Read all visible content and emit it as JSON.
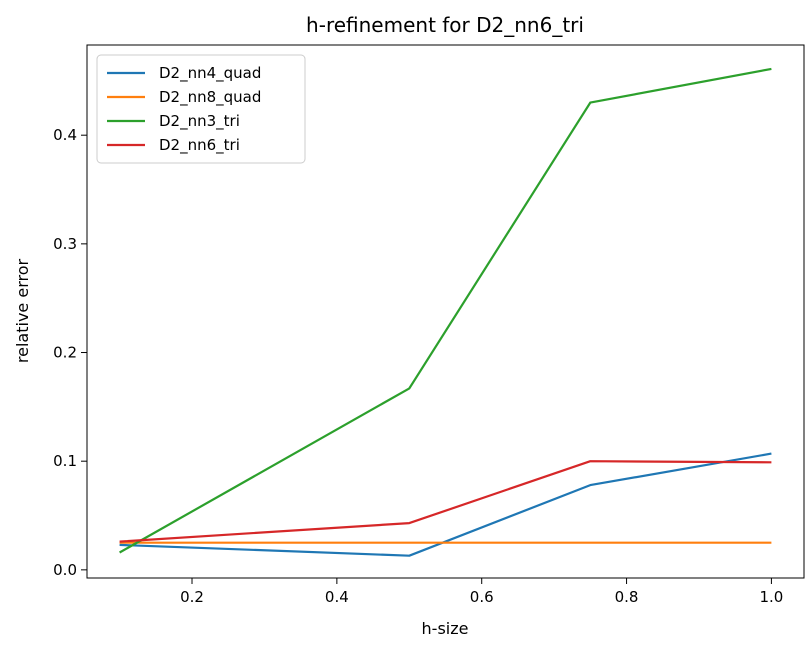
{
  "chart_data": {
    "type": "line",
    "title": "h-refinement for D2_nn6_tri",
    "xlabel": "h-size",
    "ylabel": "relative error",
    "xlim": [
      0.055,
      1.045
    ],
    "ylim": [
      -0.0075,
      0.483
    ],
    "xticks": [
      0.2,
      0.4,
      0.6,
      0.8,
      1.0
    ],
    "xtick_labels": [
      "0.2",
      "0.4",
      "0.6",
      "0.8",
      "1.0"
    ],
    "yticks": [
      0.0,
      0.1,
      0.2,
      0.3,
      0.4
    ],
    "ytick_labels": [
      "0.0",
      "0.1",
      "0.2",
      "0.3",
      "0.4"
    ],
    "x": [
      0.1,
      0.5,
      0.75,
      1.0
    ],
    "grid": false,
    "legend_position": "top-left",
    "series": [
      {
        "name": "D2_nn4_quad",
        "color": "#1f77b4",
        "values": [
          0.023,
          0.013,
          0.078,
          0.107
        ]
      },
      {
        "name": "D2_nn8_quad",
        "color": "#ff7f0e",
        "values": [
          0.025,
          0.025,
          0.025,
          0.025
        ]
      },
      {
        "name": "D2_nn3_tri",
        "color": "#2ca02c",
        "values": [
          0.016,
          0.167,
          0.43,
          0.461
        ]
      },
      {
        "name": "D2_nn6_tri",
        "color": "#d62728",
        "values": [
          0.026,
          0.043,
          0.1,
          0.099
        ]
      }
    ]
  }
}
